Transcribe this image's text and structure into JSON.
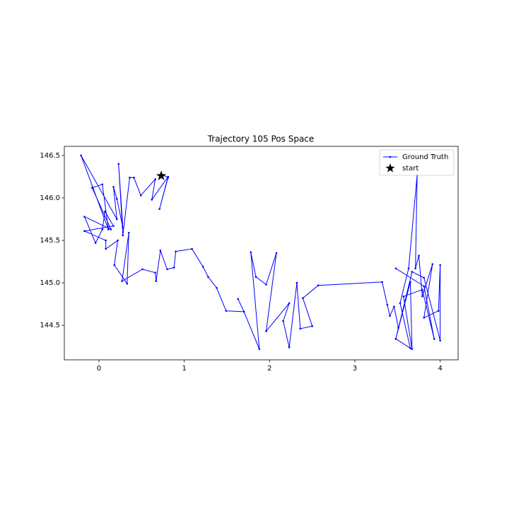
{
  "chart_data": {
    "type": "line",
    "title": "Trajectory 105 Pos Space",
    "xlim": [
      -0.406,
      4.21
    ],
    "ylim": [
      144.093,
      146.608
    ],
    "xticks": [
      0,
      1,
      2,
      3,
      4
    ],
    "yticks": [
      {
        "value": 144.5,
        "label": "144.5"
      },
      {
        "value": 145,
        "label": "145.0"
      },
      {
        "value": 145.5,
        "label": "145.5"
      },
      {
        "value": 146,
        "label": "146.0"
      },
      {
        "value": 146.5,
        "label": "146.5"
      }
    ],
    "legend": "upper right",
    "series": [
      {
        "name": "Ground Truth",
        "color": "#0000ff",
        "marker": "dot",
        "x": [
          0.73,
          0.81,
          0.71,
          0.81,
          0.62,
          0.66,
          0.49,
          0.41,
          0.36,
          0.28,
          0.23,
          0.28,
          0.21,
          0.17,
          0.21,
          -0.21,
          0.11,
          0.04,
          -0.08,
          0.14,
          -0.17,
          -0.04,
          0.04,
          0.07,
          0.17,
          -0.17,
          0.08,
          0.08,
          0.22,
          0.18,
          0.33,
          0.35,
          0.27,
          0.51,
          0.66,
          0.67,
          0.72,
          0.8,
          0.88,
          0.9,
          1.09,
          1.22,
          1.28,
          1.38,
          1.49,
          1.7,
          1.63,
          1.7,
          1.88,
          1.78,
          1.84,
          1.96,
          2.08,
          1.96,
          2.23,
          2.16,
          2.23,
          2.32,
          2.36,
          2.5,
          2.39,
          2.57,
          3.32,
          3.38,
          3.41,
          3.46,
          3.51,
          3.48,
          3.65,
          3.53,
          3.63,
          3.73,
          3.71,
          3.75,
          3.79,
          3.91,
          3.81,
          3.98,
          4.0,
          4.0,
          3.81,
          3.67,
          3.48,
          3.65,
          3.67,
          3.57,
          3.79,
          3.93,
          3.81,
          3.48
        ],
        "values": [
          146.28,
          146.24,
          145.87,
          146.25,
          145.98,
          146.22,
          146.03,
          146.24,
          146.24,
          145.56,
          146.4,
          145.65,
          145.99,
          146.13,
          145.75,
          146.5,
          145.63,
          146.16,
          146.12,
          145.63,
          145.78,
          145.47,
          145.63,
          145.84,
          145.67,
          145.61,
          145.5,
          145.4,
          145.5,
          145.21,
          144.99,
          145.59,
          145.02,
          145.16,
          145.12,
          145.02,
          145.38,
          145.16,
          145.18,
          145.37,
          145.4,
          145.19,
          145.07,
          144.94,
          144.67,
          144.66,
          144.81,
          144.66,
          144.22,
          145.36,
          145.07,
          144.98,
          145.35,
          144.43,
          144.76,
          144.55,
          144.24,
          145.0,
          144.46,
          144.49,
          144.82,
          144.97,
          145.01,
          144.74,
          144.61,
          144.72,
          144.47,
          144.34,
          144.23,
          144.76,
          145.17,
          146.27,
          145.17,
          145.32,
          144.84,
          145.22,
          144.59,
          144.67,
          145.21,
          144.32,
          145.06,
          145.13,
          144.34,
          145.01,
          144.22,
          144.84,
          144.92,
          144.34,
          144.96,
          145.17
        ]
      },
      {
        "name": "start",
        "color": "#000000",
        "marker": "star",
        "x": [
          0.73
        ],
        "values": [
          146.26
        ]
      }
    ]
  }
}
